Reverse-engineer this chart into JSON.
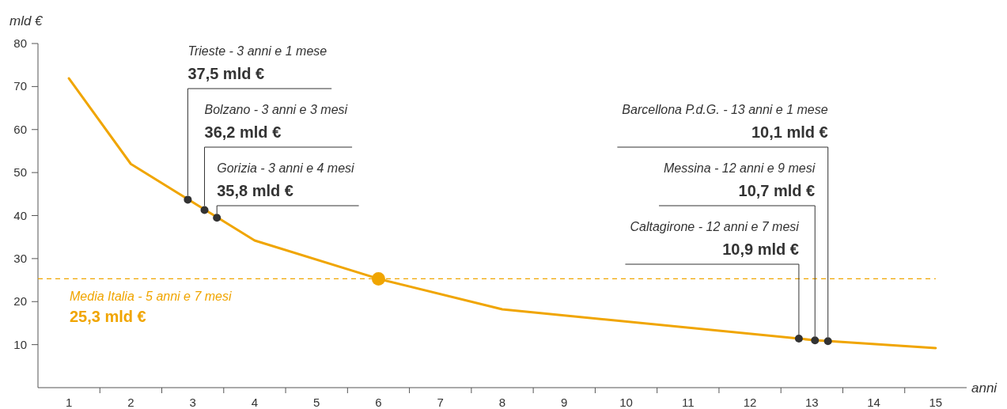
{
  "chart_data": {
    "type": "line",
    "xlabel": "anni",
    "ylabel": "mld €",
    "xlim": [
      0.5,
      15.5
    ],
    "ylim": [
      0,
      80
    ],
    "xticks": [
      1,
      {
        "value": 1.5,
        "label": null
      },
      2,
      {
        "value": 2.5,
        "label": null
      },
      3,
      {
        "value": 3.5,
        "label": null
      },
      4,
      {
        "value": 4.5,
        "label": null
      },
      5,
      {
        "value": 5.5,
        "label": null
      },
      6,
      {
        "value": 6.5,
        "label": null
      },
      7,
      {
        "value": 7.5,
        "label": null
      },
      8,
      {
        "value": 8.5,
        "label": null
      },
      9,
      {
        "value": 9.5,
        "label": null
      },
      10,
      {
        "value": 10.5,
        "label": null
      },
      11,
      {
        "value": 11.5,
        "label": null
      },
      12,
      {
        "value": 12.5,
        "label": null
      },
      13,
      {
        "value": 13.5,
        "label": null
      },
      14,
      {
        "value": 14.5,
        "label": null
      },
      15
    ],
    "yticks": [
      10,
      20,
      30,
      40,
      50,
      60,
      70,
      80
    ],
    "grid": false,
    "series": [
      {
        "color": "#f0a500",
        "marker": "none",
        "line_style": "solid",
        "x": [
          1,
          2,
          4,
          6,
          8,
          13,
          15
        ],
        "values": [
          71.9,
          52,
          34.2,
          25.3,
          18.2,
          11.1,
          9.2
        ]
      },
      {
        "type": "scatter",
        "color": "#333333",
        "marker": "circle",
        "x": [
          2.92,
          3.19,
          3.39,
          12.79,
          13.05,
          13.26
        ],
        "values": [
          43.7,
          41.3,
          39.5,
          11.4,
          11.0,
          10.8
        ]
      },
      {
        "type": "scatter",
        "color": "#f0a500",
        "marker": "circle",
        "x": [
          6
        ],
        "values": [
          25.3
        ]
      }
    ],
    "ref_lines": [
      {
        "axis": "y",
        "value": 25.3,
        "label": "Media Italia - 5 anni e 7 mesi\n25,3 mld €",
        "color": "#f0a500",
        "line_style": "dashed"
      }
    ],
    "annotations": [
      {
        "text": "Trieste - 3 anni e 1 mese\n37,5 mld €",
        "x": 2.92,
        "y": 43.7
      },
      {
        "text": "Bolzano - 3 anni e 3 mesi\n36,2 mld €",
        "x": 3.19,
        "y": 41.3
      },
      {
        "text": "Gorizia - 3 anni e 4 mesi\n35,8 mld €",
        "x": 3.39,
        "y": 39.5
      },
      {
        "text": "Caltagirone - 12 anni e 7 mesi\n10,9 mld €",
        "x": 12.79,
        "y": 11.4
      },
      {
        "text": "Messina - 12 anni e 9 mesi\n10,7 mld €",
        "x": 13.05,
        "y": 11.0
      },
      {
        "text": "Barcellona P.d.G. - 13 anni e 1 mese\n10,1 mld €",
        "x": 13.26,
        "y": 10.8
      }
    ]
  }
}
